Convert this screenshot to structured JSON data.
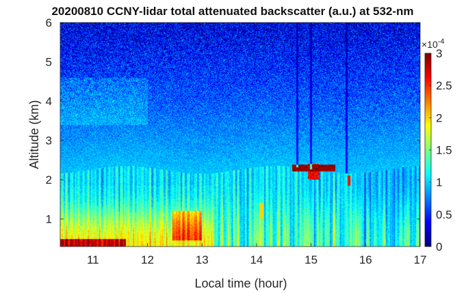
{
  "chart_data": {
    "type": "heatmap",
    "title": "20200810 CCNY-lidar total attenuated backscatter (a.u.) at 532-nm",
    "xlabel": "Local time (hour)",
    "ylabel": "Altitude (km)",
    "xlim": [
      10.4,
      17.0
    ],
    "ylim": [
      0.3,
      6.0
    ],
    "x_ticks": [
      "11",
      "12",
      "13",
      "14",
      "15",
      "16",
      "17"
    ],
    "x_tick_values": [
      11,
      12,
      13,
      14,
      15,
      16,
      17
    ],
    "y_ticks": [
      "1",
      "2",
      "3",
      "4",
      "5",
      "6"
    ],
    "y_tick_values": [
      1,
      2,
      3,
      4,
      5,
      6
    ],
    "colormap": "jet",
    "colorbar": {
      "ticks": [
        "0",
        "0.5",
        "1",
        "1.5",
        "2",
        "2.5",
        "3"
      ],
      "tick_values": [
        0,
        0.5,
        1,
        1.5,
        2,
        2.5,
        3
      ],
      "range": [
        0,
        3
      ],
      "multiplier": "×10",
      "exponent": "-4"
    },
    "layers": [
      {
        "feature": "boundary layer top",
        "altitude_km": 2.2,
        "value_x1e-4": 1.1
      },
      {
        "feature": "near-surface aerosol",
        "altitude_range_km": [
          0.3,
          1.7
        ],
        "value_x1e-4": 1.7
      },
      {
        "feature": "clouds",
        "time_range_h": [
          14.7,
          15.5
        ],
        "altitude_km": 2.3,
        "value_x1e-4": 3.0
      },
      {
        "feature": "cloud",
        "time_h": 15.7,
        "altitude_km": 2.0,
        "value_x1e-4": 2.5
      },
      {
        "feature": "free troposphere",
        "altitude_range_km": [
          2.5,
          6.0
        ],
        "value_x1e-4": 0.4
      }
    ]
  }
}
